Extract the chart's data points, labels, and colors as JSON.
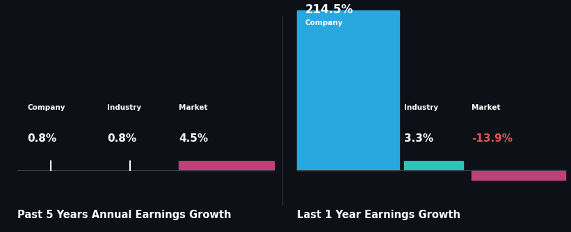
{
  "bg_color": "#0d1117",
  "divider_color": "#2a2e35",
  "title_fontsize": 10.5,
  "label_fontsize": 7.5,
  "value_fontsize": 11,
  "annotation_fontsize": 12,
  "left_title": "Past 5 Years Annual Earnings Growth",
  "left_company_label": "Company",
  "left_company_value": "0.8%",
  "left_industry_label": "Industry",
  "left_industry_value": "0.8%",
  "left_market_label": "Market",
  "left_market_value": "4.5%",
  "left_market_bar_color": "#c0417a",
  "right_title": "Last 1 Year Earnings Growth",
  "right_company_label": "Company",
  "right_company_value": "214.5%",
  "right_company_bar_color": "#29a8e0",
  "right_industry_label": "Industry",
  "right_industry_value": "3.3%",
  "right_industry_bar_color": "#2ec4b6",
  "right_market_label": "Market",
  "right_market_value": "-13.9%",
  "right_market_value_color": "#e05555",
  "right_market_bar_color": "#c0417a"
}
